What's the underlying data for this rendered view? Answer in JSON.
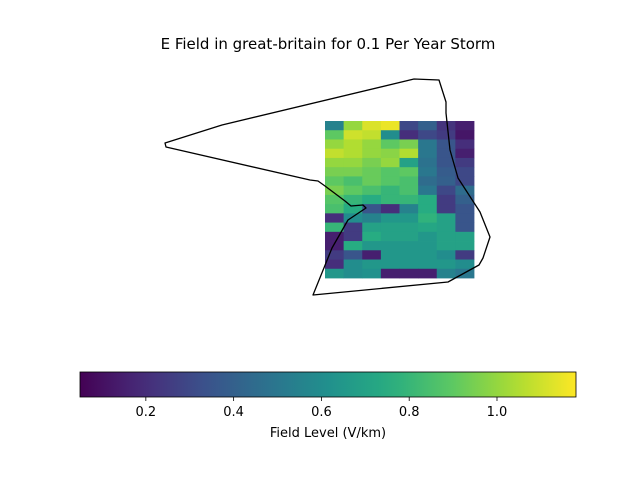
{
  "chart_data": {
    "type": "heatmap",
    "title": "E Field in great-britain for 0.1 Per Year Storm",
    "colorbar": {
      "label": "Field Level (V/km)",
      "range": [
        0.05,
        1.18
      ],
      "ticks": [
        0.2,
        0.4,
        0.6,
        0.8,
        1.0
      ],
      "tick_labels": [
        "0.2",
        "0.4",
        "0.6",
        "0.8",
        "1.0"
      ],
      "colormap": "viridis",
      "orientation": "horizontal",
      "placement": "bottom"
    },
    "grid": {
      "rows": 17,
      "cols": 8,
      "values": [
        [
          0.55,
          1.0,
          1.12,
          1.15,
          0.3,
          0.4,
          0.22,
          0.15
        ],
        [
          0.9,
          1.1,
          1.08,
          0.6,
          0.2,
          0.3,
          0.25,
          0.12
        ],
        [
          1.0,
          1.05,
          1.0,
          0.9,
          0.95,
          0.5,
          0.35,
          0.2
        ],
        [
          1.08,
          1.05,
          1.0,
          0.98,
          1.05,
          0.5,
          0.35,
          0.15
        ],
        [
          1.0,
          1.0,
          0.95,
          1.0,
          0.7,
          0.48,
          0.35,
          0.25
        ],
        [
          0.95,
          0.95,
          0.92,
          0.88,
          0.9,
          0.5,
          0.38,
          0.3
        ],
        [
          0.9,
          0.85,
          0.92,
          0.88,
          0.85,
          0.45,
          0.4,
          0.3
        ],
        [
          0.95,
          0.9,
          0.85,
          0.8,
          0.85,
          0.5,
          0.3,
          0.45
        ],
        [
          0.88,
          0.8,
          0.75,
          0.8,
          0.8,
          0.75,
          0.25,
          0.4
        ],
        [
          0.85,
          0.75,
          0.35,
          0.2,
          0.55,
          0.75,
          0.25,
          0.35
        ],
        [
          0.2,
          0.6,
          0.55,
          0.65,
          0.65,
          0.78,
          0.7,
          0.35
        ],
        [
          0.8,
          0.25,
          0.7,
          0.7,
          0.7,
          0.72,
          0.7,
          0.35
        ],
        [
          0.15,
          0.25,
          0.75,
          0.7,
          0.7,
          0.65,
          0.7,
          0.7
        ],
        [
          0.15,
          0.75,
          0.65,
          0.65,
          0.65,
          0.65,
          0.7,
          0.7
        ],
        [
          0.25,
          0.35,
          0.15,
          0.65,
          0.65,
          0.65,
          0.6,
          0.25
        ],
        [
          0.2,
          0.6,
          0.65,
          0.65,
          0.65,
          0.65,
          0.65,
          0.6
        ],
        [
          0.65,
          0.6,
          0.62,
          0.15,
          0.15,
          0.15,
          0.55,
          0.5
        ]
      ]
    },
    "outline": {
      "name": "great-britain",
      "color": "#000000"
    }
  }
}
